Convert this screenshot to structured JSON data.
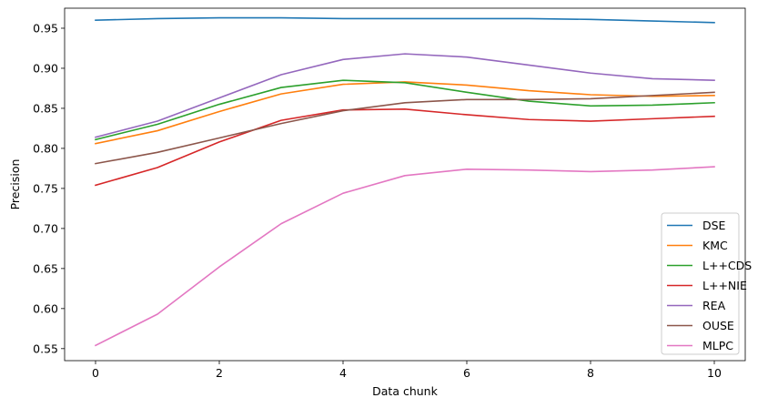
{
  "chart_data": {
    "type": "line",
    "xlabel": "Data chunk",
    "ylabel": "Precision",
    "xlim": [
      -0.5,
      10.5
    ],
    "ylim": [
      0.535,
      0.975
    ],
    "xticks": [
      0,
      2,
      4,
      6,
      8,
      10
    ],
    "yticks": [
      0.55,
      0.6,
      0.65,
      0.7,
      0.75,
      0.8,
      0.85,
      0.9,
      0.95
    ],
    "grid": false,
    "legend_position": "lower-right",
    "x": [
      0,
      1,
      2,
      3,
      4,
      5,
      6,
      7,
      8,
      9,
      10
    ],
    "series": [
      {
        "name": "DSE",
        "color": "#1f77b4",
        "values": [
          0.96,
          0.962,
          0.963,
          0.963,
          0.962,
          0.962,
          0.962,
          0.962,
          0.961,
          0.959,
          0.957
        ]
      },
      {
        "name": "KMC",
        "color": "#ff7f0e",
        "values": [
          0.806,
          0.822,
          0.846,
          0.868,
          0.88,
          0.883,
          0.879,
          0.872,
          0.867,
          0.865,
          0.866
        ]
      },
      {
        "name": "L++CDS",
        "color": "#2ca02c",
        "values": [
          0.811,
          0.83,
          0.855,
          0.876,
          0.885,
          0.882,
          0.87,
          0.859,
          0.853,
          0.854,
          0.857
        ]
      },
      {
        "name": "L++NIE",
        "color": "#d62728",
        "values": [
          0.754,
          0.776,
          0.808,
          0.835,
          0.848,
          0.849,
          0.842,
          0.836,
          0.834,
          0.837,
          0.84
        ]
      },
      {
        "name": "REA",
        "color": "#9467bd",
        "values": [
          0.814,
          0.834,
          0.863,
          0.892,
          0.911,
          0.918,
          0.914,
          0.904,
          0.894,
          0.887,
          0.885
        ]
      },
      {
        "name": "OUSE",
        "color": "#8c564b",
        "values": [
          0.781,
          0.795,
          0.813,
          0.831,
          0.847,
          0.857,
          0.861,
          0.861,
          0.862,
          0.866,
          0.87
        ]
      },
      {
        "name": "MLPC",
        "color": "#e377c2",
        "values": [
          0.554,
          0.593,
          0.652,
          0.706,
          0.744,
          0.766,
          0.774,
          0.773,
          0.771,
          0.773,
          0.777
        ]
      }
    ]
  }
}
